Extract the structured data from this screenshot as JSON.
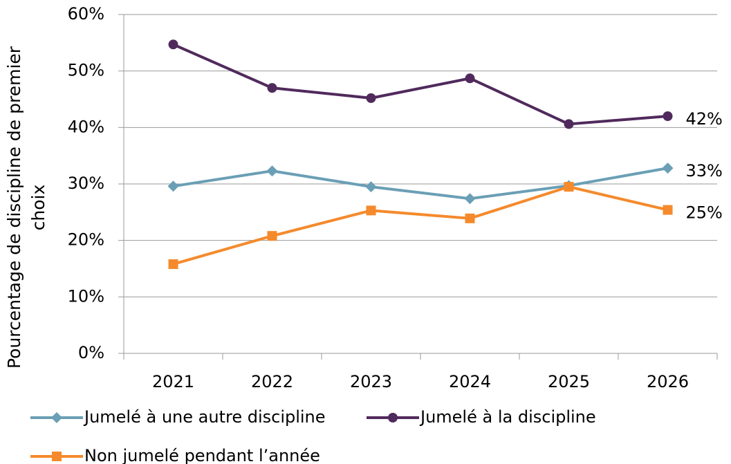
{
  "chart_data": {
    "type": "line",
    "y_label": "Pourcentage de discipline de premier choix",
    "categories": [
      "2021",
      "2022",
      "2023",
      "2024",
      "2025",
      "2026"
    ],
    "series": [
      {
        "name": "Jumelé à une autre discipline",
        "color": "#6a9fb5",
        "marker": "diamond",
        "values": [
          29.6,
          32.3,
          29.5,
          27.4,
          29.7,
          32.8
        ],
        "value_labels": [
          null,
          null,
          null,
          null,
          null,
          "33%"
        ]
      },
      {
        "name": "Jumelé à la discipline",
        "color": "#502a5c",
        "marker": "circle",
        "values": [
          54.7,
          47.0,
          45.2,
          48.7,
          40.6,
          42.0
        ],
        "value_labels": [
          null,
          null,
          null,
          null,
          null,
          "42%"
        ]
      },
      {
        "name": "Non jumelé pendant l’année",
        "color": "#f58a2c",
        "marker": "square",
        "values": [
          15.8,
          20.8,
          25.3,
          23.9,
          29.5,
          25.4
        ],
        "value_labels": [
          null,
          null,
          null,
          null,
          null,
          "25%"
        ]
      }
    ],
    "ylim": [
      0,
      60
    ],
    "yticks": [
      {
        "value": 0,
        "label": "0%"
      },
      {
        "value": 10,
        "label": "10%"
      },
      {
        "value": 20,
        "label": "20%"
      },
      {
        "value": 30,
        "label": "30%"
      },
      {
        "value": 40,
        "label": "40%"
      },
      {
        "value": 50,
        "label": "50%"
      },
      {
        "value": 60,
        "label": "60%"
      }
    ],
    "grid": true,
    "legend": "bottom"
  }
}
